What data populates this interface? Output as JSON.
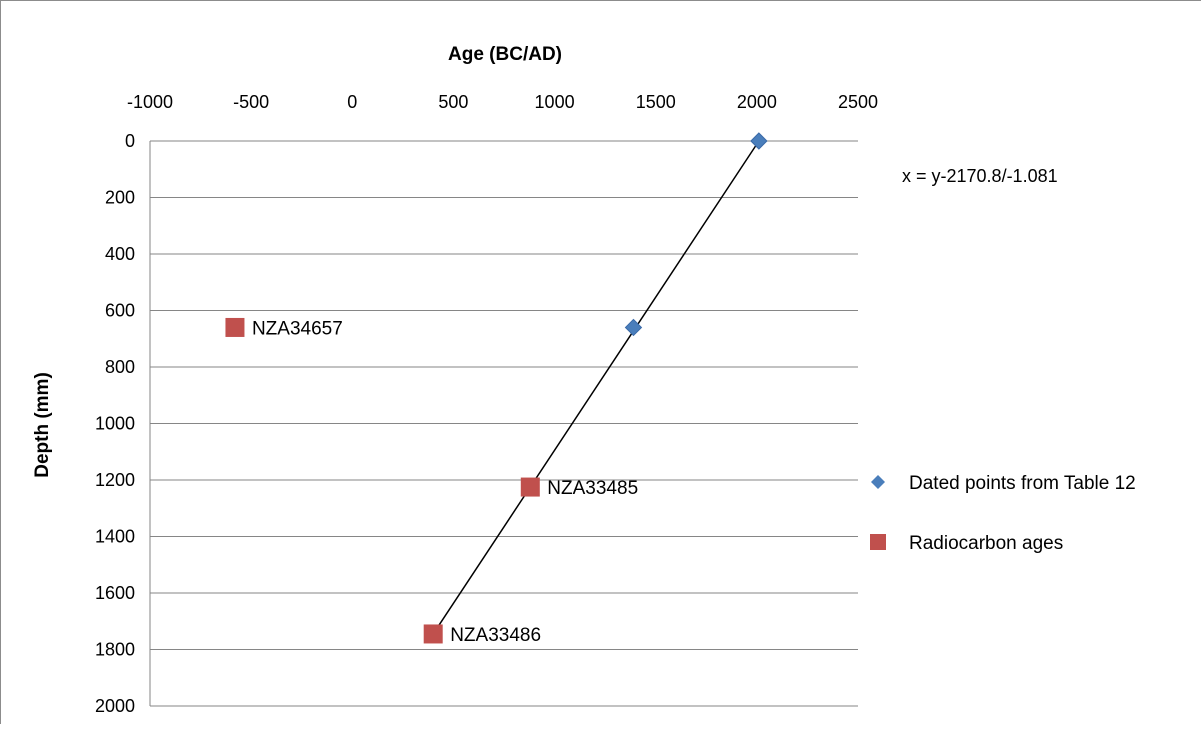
{
  "chart_data": {
    "type": "scatter",
    "title": "",
    "xlabel": "Age (BC/AD)",
    "ylabel": "Depth (mm)",
    "x_axis_position": "top",
    "y_axis_reversed": true,
    "xlim": [
      -1000,
      2500
    ],
    "ylim": [
      0,
      2000
    ],
    "x_ticks": [
      -1000,
      -500,
      0,
      500,
      1000,
      1500,
      2000,
      2500
    ],
    "y_ticks": [
      0,
      200,
      400,
      600,
      800,
      1000,
      1200,
      1400,
      1600,
      1800,
      2000
    ],
    "grid": "horizontal",
    "legend_position": "right",
    "series": [
      {
        "name": "Dated points from Table 12",
        "marker": "diamond",
        "color": "#4a7ebb",
        "points": [
          {
            "x": 2010,
            "y": 0
          },
          {
            "x": 1390,
            "y": 660
          }
        ]
      },
      {
        "name": "Radiocarbon ages",
        "marker": "square",
        "color": "#c0504d",
        "points": [
          {
            "x": -580,
            "y": 660,
            "label": "NZA34657"
          },
          {
            "x": 880,
            "y": 1225,
            "label": "NZA33485"
          },
          {
            "x": 400,
            "y": 1745,
            "label": "NZA33486"
          }
        ]
      }
    ],
    "trendline": {
      "from": {
        "x": 2010,
        "y": 0
      },
      "to": {
        "x": 400,
        "y": 1745
      },
      "color": "#000000"
    },
    "annotation": "x = y-2170.8/-1.081"
  }
}
